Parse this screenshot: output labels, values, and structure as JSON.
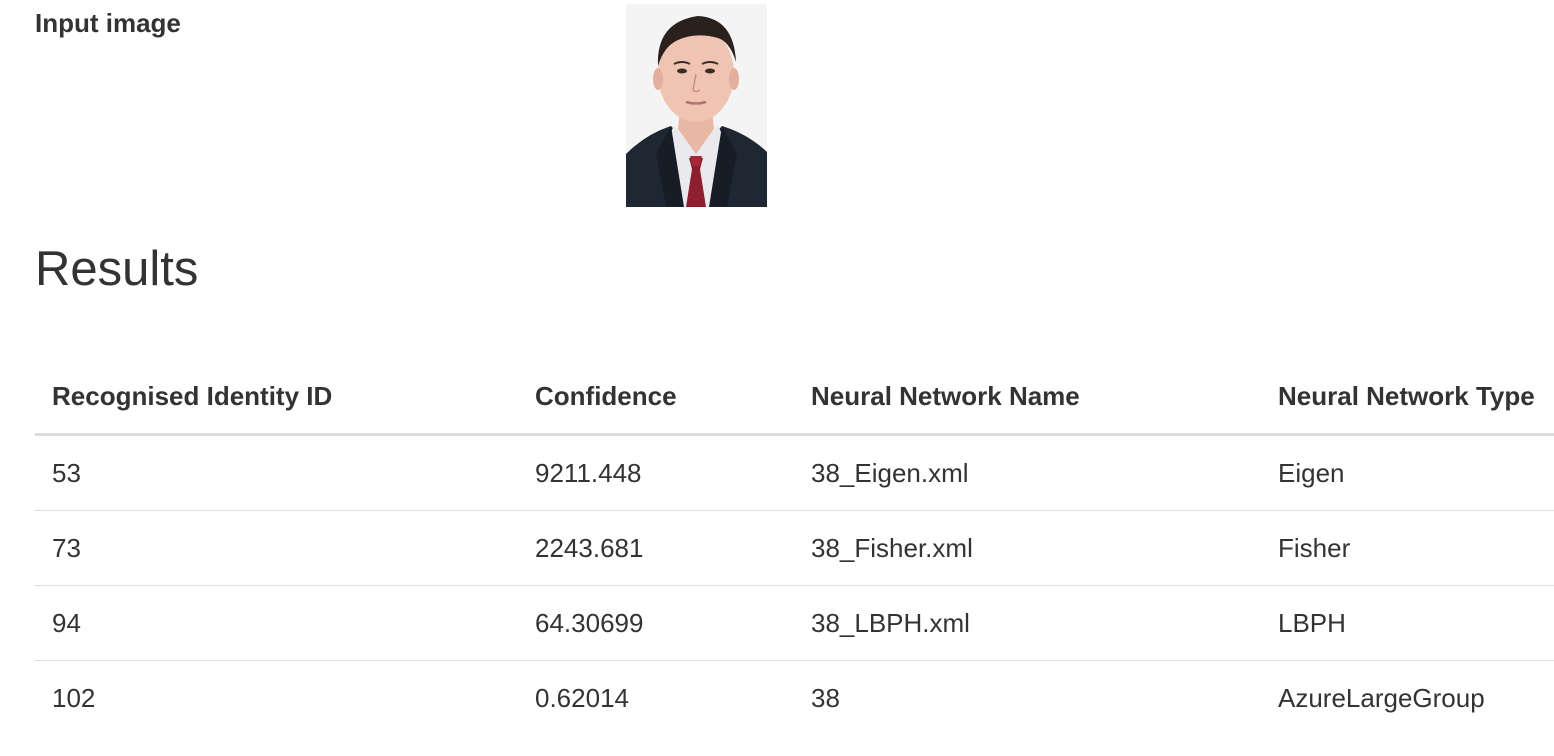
{
  "input_section": {
    "label": "Input image"
  },
  "results": {
    "title": "Results",
    "columns": [
      "Recognised Identity ID",
      "Confidence",
      "Neural Network Name",
      "Neural Network Type"
    ],
    "rows": [
      {
        "id": "53",
        "confidence": "9211.448",
        "network_name": "38_Eigen.xml",
        "network_type": "Eigen"
      },
      {
        "id": "73",
        "confidence": "2243.681",
        "network_name": "38_Fisher.xml",
        "network_type": "Fisher"
      },
      {
        "id": "94",
        "confidence": "64.30699",
        "network_name": "38_LBPH.xml",
        "network_type": "LBPH"
      },
      {
        "id": "102",
        "confidence": "0.62014",
        "network_name": "38",
        "network_type": "AzureLargeGroup"
      }
    ]
  },
  "colors": {
    "text": "#333333",
    "border": "#dddddd",
    "background": "#ffffff"
  }
}
